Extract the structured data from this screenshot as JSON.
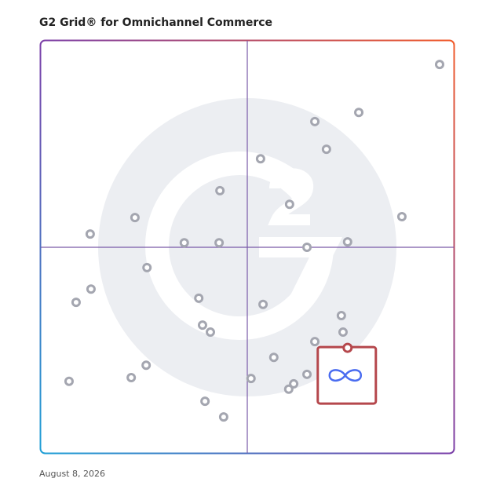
{
  "chart_data": {
    "type": "scatter",
    "title": "G2 Grid® for Omnichannel Commerce",
    "date": "August 8, 2026",
    "xlim": [
      0,
      100
    ],
    "ylim": [
      0,
      100
    ],
    "color": "#a4a6b0",
    "x": [
      96.4,
      76.9,
      66.3,
      69.1,
      53.2,
      43.4,
      60.2,
      87.3,
      22.9,
      12.1,
      34.8,
      43.2,
      74.2,
      64.4,
      25.8,
      12.3,
      8.7,
      38.3,
      53.8,
      72.7,
      39.2,
      41.1,
      73.1,
      66.3,
      56.4,
      25.6,
      22.0,
      7.0,
      50.9,
      64.4,
      61.2,
      60.0,
      39.8,
      44.3
    ],
    "y": [
      94.1,
      82.5,
      80.3,
      73.6,
      71.3,
      63.6,
      60.3,
      57.3,
      57.1,
      53.1,
      51.0,
      51.0,
      51.2,
      49.9,
      45.0,
      39.8,
      36.6,
      37.6,
      36.1,
      33.4,
      31.1,
      29.4,
      29.4,
      27.1,
      23.3,
      21.4,
      18.4,
      17.5,
      18.2,
      19.2,
      16.9,
      15.6,
      12.7,
      8.9
    ],
    "highlight": {
      "x": 74.2,
      "y": 25.6,
      "color": "#b5474c"
    }
  }
}
